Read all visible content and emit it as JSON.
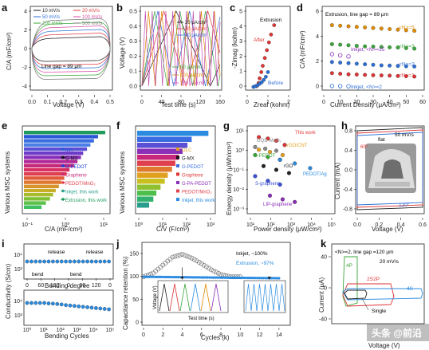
{
  "panels": {
    "a": {
      "label": "a",
      "xlabel": "Voltage (V)",
      "ylabel": "C/A (mF/cm²)",
      "xticks": [
        "0.0",
        "0.1",
        "0.2",
        "0.3",
        "0.4",
        "0.5"
      ],
      "yticks": [
        "4",
        "2",
        "0",
        "-2",
        "-4"
      ],
      "annotation": "Line gap = 89 μm",
      "legend": [
        "10 mV/s",
        "20 mV/s",
        "50 mV/s",
        "100 mV/s",
        "200 mV/s",
        "500 mV/s"
      ],
      "legend_colors": [
        "#1a1a1a",
        "#e03c3c",
        "#2b6fd6",
        "#d94fa3",
        "#3aa53a",
        "#777777"
      ]
    },
    "b": {
      "label": "b",
      "xlabel": "Test time (s)",
      "ylabel": "Voltage (V)",
      "xticks": [
        "0",
        "40",
        "80",
        "120",
        "160"
      ],
      "yticks": [
        "0.0",
        "0.1",
        "0.2",
        "0.3",
        "0.4",
        "0.5"
      ],
      "legend": [
        "20 μA/cm²",
        "30 μA/cm²",
        "40 μA/cm²",
        "50 μA/cm²",
        "100 μA/cm²",
        "200 μA/cm²"
      ],
      "legend_colors": [
        "#1a1a1a",
        "#e03c3c",
        "#2b6fd6",
        "#3aa53a",
        "#e08a00",
        "#c04db0"
      ]
    },
    "c": {
      "label": "c",
      "xlabel": "Zreal (kohm)",
      "ylabel": "-Zimag (kohm)",
      "xticks": [
        "0",
        "1",
        "2"
      ],
      "yticks": [
        "0",
        "1",
        "2",
        "3",
        "4",
        "5"
      ],
      "title": "Extrusion",
      "after": "After",
      "before": "Before"
    },
    "d": {
      "label": "d",
      "xlabel": "Current Density (μA/cm²)",
      "ylabel": "C/A (mF/cm²)",
      "xticks": [
        "0",
        "10",
        "20",
        "30",
        "40",
        "50",
        "60"
      ],
      "yticks": [
        "0",
        "2",
        "4",
        "6"
      ],
      "title": "Extrusion, line gap = 89 μm",
      "inkjet": "Inkjet, <N>=25",
      "inkjet2": "Inkjet, <N>=2",
      "series": [
        "<N>=5",
        "<N>=3",
        "<N>=2",
        "<N>=1"
      ]
    },
    "e": {
      "label": "e",
      "xlabel": "C/A (mF/cm²)",
      "ylabel": "Various MSC systems",
      "xticks": [
        "10⁻¹",
        "10⁰",
        "10¹"
      ],
      "legend": [
        "MX",
        "G-MX",
        "G-PEDOT",
        "Graphene",
        "PEDOT/MnO₂",
        "Inkjet, this work",
        "Extrusion, this work"
      ]
    },
    "f": {
      "label": "f",
      "xlabel": "C/V (F/cm³)",
      "ylabel": "Various MSC systems",
      "xticks": [
        "10⁰",
        "10¹",
        "10²",
        "10³"
      ],
      "legend": [
        "OLC",
        "G-MX",
        "G-PEDOT",
        "Graphene",
        "G-PA-PEDOT",
        "PEDOT/MnO₂",
        "Inkjet, this work"
      ]
    },
    "g": {
      "label": "g",
      "xlabel": "Power density (μW/cm²)",
      "ylabel": "Energy density (μWh/cm²)",
      "xticks": [
        "10¹",
        "10²",
        "10³",
        "10⁴",
        "10⁵"
      ],
      "yticks": [
        "10¹",
        "10⁰",
        "10⁻¹",
        "10⁻²",
        "10⁻³"
      ],
      "labels": [
        "This work",
        "GQD-MnO₂",
        "rGO/CNT",
        "G-PEDOT",
        "rGO",
        "PEDOT/Ag",
        "S-graphene",
        "LIP-graphene"
      ]
    },
    "h": {
      "label": "h",
      "xlabel": "Voltage (V)",
      "ylabel": "Current (mA)",
      "xticks": [
        "0.0",
        "0.2",
        "0.4",
        "0.6"
      ],
      "yticks": [
        "0.8",
        "0.4",
        "0.0",
        "-0.4",
        "-0.8"
      ],
      "flat": "flat",
      "ang60": "60°",
      "ang120": "120°",
      "rate": "50 mV/s"
    },
    "i": {
      "label": "i",
      "ylabel": "Conductivity (S/cm)",
      "xlabel1": "Bending degree",
      "xlabel2": "Bending Cycles",
      "xticks1": [
        "0",
        "60",
        "120",
        "0",
        "60",
        "120",
        "0"
      ],
      "xticks2": [
        "10⁰",
        "10¹",
        "10²",
        "10³",
        "10⁴",
        "10⁵"
      ],
      "yticks": [
        "10⁴",
        "10³",
        "10⁴",
        "10³"
      ],
      "release": "release",
      "bend": "bend"
    },
    "j": {
      "label": "j",
      "xlabel": "Cycles (k)",
      "ylabel": "Capacitance retention (%)",
      "xticks": [
        "0",
        "2",
        "4",
        "6",
        "8",
        "10",
        "12",
        "14"
      ],
      "yticks": [
        "0",
        "50",
        "100",
        "150"
      ],
      "inkjet": "Inkjet, ~100%",
      "extrusion": "Extrusion, ~97%",
      "inset_x": "Test time (s)",
      "inset_y": "Voltage (V)",
      "inset_ticks": [
        "0",
        "50",
        "100",
        "150"
      ]
    },
    "k": {
      "label": "k",
      "xlabel": "Voltage (V)",
      "ylabel": "Current (μA)",
      "title": "<N>=2, line gap =120 μm",
      "rate": "20 mV/s",
      "labels": [
        "4P",
        "2S2P",
        "4S",
        "Single"
      ],
      "yticks": [
        "40",
        "0",
        "-40"
      ]
    }
  },
  "watermark": "头条 @前沿",
  "chart_data": [
    {
      "type": "line",
      "panel": "a",
      "series": [
        {
          "name": "10 mV/s"
        },
        {
          "name": "20 mV/s"
        },
        {
          "name": "50 mV/s"
        },
        {
          "name": "100 mV/s"
        },
        {
          "name": "200 mV/s"
        },
        {
          "name": "500 mV/s"
        }
      ],
      "xlim": [
        0,
        0.5
      ],
      "ylim": [
        -5,
        5
      ]
    },
    {
      "type": "line",
      "panel": "b",
      "series": [
        {
          "name": "20 μA/cm²",
          "period": 140
        },
        {
          "name": "30 μA/cm²",
          "period": 90
        },
        {
          "name": "40 μA/cm²",
          "period": 65
        },
        {
          "name": "50 μA/cm²",
          "period": 52
        },
        {
          "name": "100 μA/cm²",
          "period": 27
        },
        {
          "name": "200 μA/cm²",
          "period": 14
        }
      ],
      "xlim": [
        0,
        160
      ],
      "ylim": [
        0,
        0.5
      ]
    },
    {
      "type": "scatter",
      "panel": "c",
      "series": [
        {
          "name": "After",
          "x": [
            0.45,
            0.55,
            0.6,
            0.68,
            0.75,
            0.85,
            0.95,
            1.05,
            1.15,
            1.3
          ],
          "y": [
            0.1,
            0.3,
            0.6,
            1.0,
            1.4,
            1.9,
            2.4,
            2.9,
            3.4,
            4.0
          ]
        },
        {
          "name": "Before",
          "x": [
            0.3,
            0.4,
            0.5,
            0.6,
            0.7,
            0.8,
            0.9,
            1.0
          ],
          "y": [
            0.05,
            0.1,
            0.15,
            0.25,
            0.35,
            0.5,
            0.7,
            1.0
          ]
        }
      ],
      "xlim": [
        0,
        2
      ],
      "ylim": [
        0,
        5
      ]
    },
    {
      "type": "scatter",
      "panel": "d",
      "x": [
        5,
        10,
        15,
        20,
        25,
        30,
        35,
        40,
        45,
        50,
        55
      ],
      "series": [
        {
          "name": "<N>=5",
          "values": [
            5.6,
            5.55,
            5.5,
            5.45,
            5.4,
            5.35,
            5.3,
            5.25,
            5.2,
            5.15,
            5.1
          ]
        },
        {
          "name": "<N>=3",
          "values": [
            3.9,
            3.85,
            3.8,
            3.75,
            3.7,
            3.68,
            3.65,
            3.62,
            3.6,
            3.55,
            3.5
          ]
        },
        {
          "name": "<N>=2",
          "values": [
            2.3,
            2.25,
            2.2,
            2.15,
            2.1,
            2.05,
            2.0,
            1.98,
            1.95,
            1.92,
            1.9
          ]
        },
        {
          "name": "<N>=1",
          "values": [
            1.3,
            1.25,
            1.2,
            1.18,
            1.15,
            1.12,
            1.1,
            1.08,
            1.05,
            1.03,
            1.0
          ]
        },
        {
          "name": "Inkjet, <N>=25",
          "values": [
            3.0,
            2.9,
            2.8
          ]
        },
        {
          "name": "Inkjet, <N>=2",
          "values": [
            0.15,
            0.14,
            0.13
          ]
        }
      ],
      "xlim": [
        0,
        60
      ],
      "ylim": [
        0,
        7
      ]
    },
    {
      "type": "bar",
      "panel": "e",
      "values": [
        20,
        12,
        9,
        7,
        5.5,
        4.2,
        3.6,
        2.8,
        2.2,
        1.6,
        1.3,
        1.1,
        0.9,
        0.75,
        0.6,
        0.5,
        0.4,
        0.3,
        0.22
      ],
      "colors": [
        "#1f9c5c",
        "#2a5ad8",
        "#3a6ee0",
        "#4b7fe6",
        "#5b4fd6",
        "#6c3bc8",
        "#8a2fb8",
        "#b02a98",
        "#c8287a",
        "#d83062",
        "#e0404e",
        "#e25a3c",
        "#e0772e",
        "#d8942a",
        "#c8ad28",
        "#a8bb2c",
        "#80c037",
        "#5cc04a",
        "#3ec060"
      ]
    },
    {
      "type": "bar",
      "panel": "f",
      "values": [
        600,
        120,
        80,
        50,
        35,
        25,
        18,
        12,
        9,
        6,
        4,
        3,
        2
      ],
      "colors": [
        "#2a8be0",
        "#3a6ee0",
        "#5b4fd6",
        "#8a2fb8",
        "#c8287a",
        "#e0404e",
        "#e0772e",
        "#e2a020",
        "#c8c020",
        "#8ec030",
        "#4cbf4c",
        "#32b06e",
        "#2a9e8c"
      ]
    },
    {
      "type": "scatter",
      "panel": "g",
      "series": [
        {
          "name": "This work",
          "x": [
            30,
            80,
            200,
            500
          ],
          "y": [
            3.5,
            3.0,
            2.4,
            1.5
          ]
        },
        {
          "name": "GQD-MnO₂",
          "x": [
            20,
            60,
            200
          ],
          "y": [
            1.2,
            1.0,
            0.8
          ]
        },
        {
          "name": "rGO/CNT",
          "x": [
            30,
            100,
            400
          ],
          "y": [
            0.9,
            0.7,
            0.5
          ]
        },
        {
          "name": "G-PEDOT",
          "x": [
            20,
            80,
            300
          ],
          "y": [
            0.5,
            0.4,
            0.3
          ]
        },
        {
          "name": "rGO",
          "x": [
            50,
            200,
            800
          ],
          "y": [
            0.15,
            0.1,
            0.07
          ]
        },
        {
          "name": "PEDOT/Ag",
          "x": [
            300,
            1500,
            8000
          ],
          "y": [
            0.3,
            0.2,
            0.12
          ]
        },
        {
          "name": "S-graphene",
          "x": [
            20,
            80,
            300
          ],
          "y": [
            0.05,
            0.03,
            0.02
          ]
        },
        {
          "name": "LIP-graphene",
          "x": [
            100,
            400,
            1500
          ],
          "y": [
            0.006,
            0.004,
            0.003
          ]
        }
      ]
    },
    {
      "type": "line",
      "panel": "h",
      "series": [
        {
          "name": "flat"
        },
        {
          "name": "60°"
        },
        {
          "name": "120°"
        }
      ],
      "xlim": [
        0,
        0.6
      ],
      "ylim": [
        -0.8,
        0.8
      ]
    },
    {
      "type": "scatter",
      "panel": "i",
      "series": [
        {
          "name": "Bending degree",
          "values": [
            1500,
            1500,
            1500,
            1500,
            1500,
            1500,
            1500,
            1500,
            1500,
            1500,
            1500,
            1500,
            1500,
            1500,
            1500,
            1500,
            1500,
            1500,
            1500,
            1500
          ]
        },
        {
          "name": "Bending Cycles",
          "values": [
            1500,
            1500,
            1500,
            1500,
            1500,
            1480,
            1470,
            1450,
            1430,
            1400,
            1380,
            1360,
            1340,
            1320,
            1300,
            1280,
            1260,
            1240,
            1220,
            1200
          ]
        }
      ]
    },
    {
      "type": "scatter",
      "panel": "j",
      "series": [
        {
          "name": "Inkjet, ~100%",
          "x": [
            0,
            1,
            2,
            3,
            4,
            5,
            6,
            7,
            8,
            9,
            10
          ],
          "y": [
            100,
            108,
            125,
            142,
            148,
            140,
            128,
            115,
            105,
            100,
            100
          ]
        },
        {
          "name": "Extrusion, ~97%",
          "x": [
            0,
            2,
            4,
            6,
            8,
            10,
            12,
            14
          ],
          "y": [
            100,
            100,
            99,
            98,
            98,
            97,
            97,
            97
          ]
        }
      ],
      "xlim": [
        0,
        15
      ],
      "ylim": [
        0,
        170
      ]
    },
    {
      "type": "line",
      "panel": "k",
      "series": [
        {
          "name": "4P"
        },
        {
          "name": "2S2P"
        },
        {
          "name": "4S"
        },
        {
          "name": "Single"
        }
      ]
    }
  ]
}
